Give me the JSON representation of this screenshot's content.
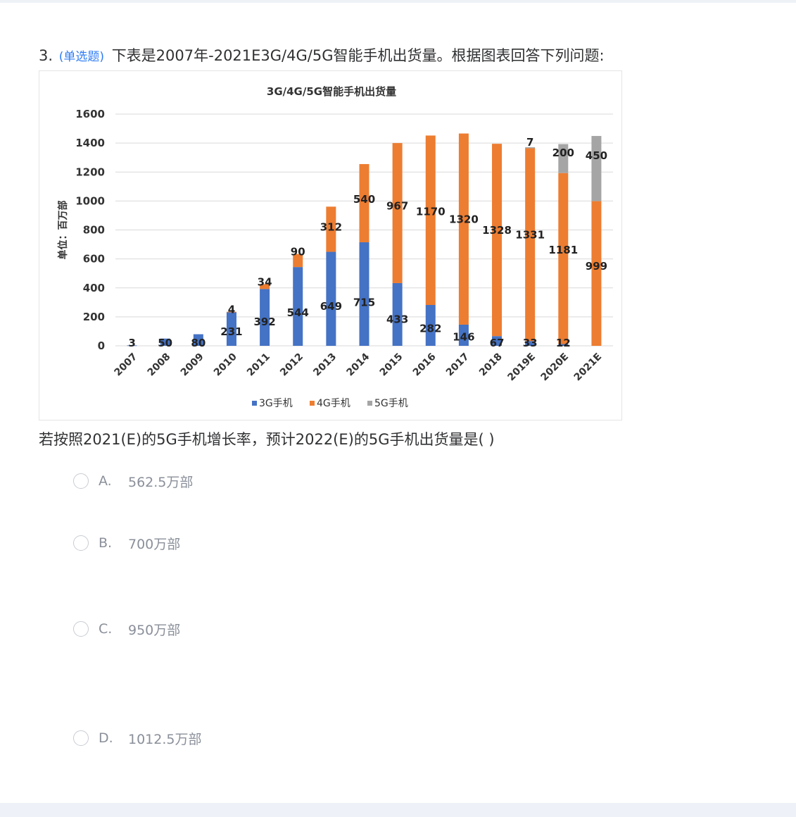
{
  "question": {
    "number": "3.",
    "type_tag": "(单选题)",
    "title": "下表是2007年-2021E3G/4G/5G智能手机出货量。根据图表回答下列问题:",
    "prompt": "若按照2021(E)的5G手机增长率，预计2022(E)的5G手机出货量是( )"
  },
  "options": [
    {
      "letter": "A.",
      "text": "562.5万部"
    },
    {
      "letter": "B.",
      "text": "700万部"
    },
    {
      "letter": "C.",
      "text": "950万部"
    },
    {
      "letter": "D.",
      "text": "1012.5万部"
    }
  ],
  "chart_data": {
    "type": "bar",
    "stacked": true,
    "title": "3G/4G/5G智能手机出货量",
    "ylabel": "单位：百万部",
    "xlabel": "",
    "ylim": [
      0,
      1600
    ],
    "yticks": [
      "0",
      "200",
      "400",
      "600",
      "800",
      "1000",
      "1200",
      "1400",
      "1600"
    ],
    "grid": true,
    "legend_position": "bottom",
    "categories": [
      "2007",
      "2008",
      "2009",
      "2010",
      "2011",
      "2012",
      "2013",
      "2014",
      "2015",
      "2016",
      "2017",
      "2018",
      "2019E",
      "2020E",
      "2021E"
    ],
    "series": [
      {
        "name": "3G手机",
        "color": "#4472c4",
        "values": [
          3,
          50,
          80,
          231,
          392,
          544,
          649,
          715,
          433,
          282,
          146,
          67,
          33,
          12,
          0
        ],
        "labels": [
          "3",
          "50",
          "80",
          "231",
          "392",
          "544",
          "649",
          "715",
          "433",
          "282",
          "146",
          "67",
          "33",
          "12",
          ""
        ]
      },
      {
        "name": "4G手机",
        "color": "#ed7d31",
        "values": [
          0,
          0,
          0,
          4,
          34,
          90,
          312,
          540,
          967,
          1170,
          1320,
          1328,
          1331,
          1181,
          999
        ],
        "labels": [
          "",
          "",
          "",
          "4",
          "34",
          "90",
          "312",
          "540",
          "967",
          "1170",
          "1320",
          "1328",
          "1331",
          "1181",
          "999"
        ]
      },
      {
        "name": "5G手机",
        "color": "#a5a5a5",
        "values": [
          0,
          0,
          0,
          0,
          0,
          0,
          0,
          0,
          0,
          0,
          0,
          0,
          7,
          200,
          450
        ],
        "labels": [
          "",
          "",
          "",
          "",
          "",
          "",
          "",
          "",
          "",
          "",
          "",
          "",
          "7",
          "200",
          "450"
        ]
      }
    ]
  }
}
